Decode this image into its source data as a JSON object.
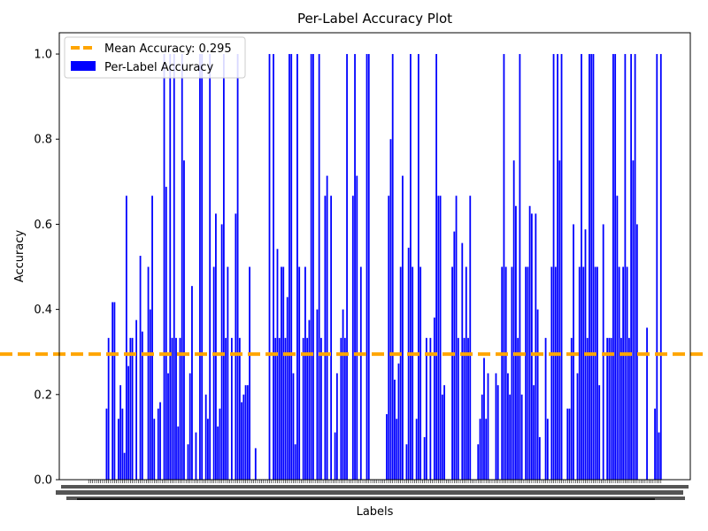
{
  "chart_data": {
    "type": "bar",
    "title": "Per-Label Accuracy Plot",
    "xlabel": "Labels",
    "ylabel": "Accuracy",
    "ylim": [
      0,
      1.05
    ],
    "yticks": [
      "0.0",
      "0.2",
      "0.4",
      "0.6",
      "0.8",
      "1.0"
    ],
    "mean_line": {
      "value": 0.295,
      "label": "Mean Accuracy: 0.295",
      "color": "#ffa500",
      "style": "dashed"
    },
    "series": [
      {
        "name": "Per-Label Accuracy",
        "color": "#0000ff",
        "values": [
          0,
          0,
          0,
          0,
          0,
          0,
          0,
          0,
          0,
          0.167,
          0.333,
          0,
          0.417,
          0.417,
          0,
          0.143,
          0.222,
          0.167,
          0.063,
          0.667,
          0.267,
          0.333,
          0.333,
          0,
          0.375,
          0,
          0.526,
          0.348,
          0,
          0,
          0.5,
          0.4,
          0.667,
          0.143,
          0,
          0.167,
          0.182,
          0,
          1.0,
          0.688,
          0.25,
          1.0,
          0.333,
          1.0,
          0.333,
          0.125,
          0.333,
          1.0,
          0.75,
          0,
          0.083,
          0.25,
          0.455,
          0,
          0.111,
          0,
          1.0,
          1.0,
          0,
          0.2,
          0.143,
          1.0,
          0,
          0.5,
          0.625,
          0.125,
          0.167,
          0.6,
          1.0,
          0.333,
          0.5,
          0,
          0.333,
          0,
          0.625,
          1.0,
          0.333,
          0.182,
          0.2,
          0.222,
          0.222,
          0.5,
          0,
          0,
          0.074,
          0,
          0,
          0,
          0,
          0,
          0,
          1.0,
          0,
          1.0,
          0.333,
          0.542,
          0.333,
          0.5,
          0.5,
          0.333,
          0.429,
          1.0,
          1.0,
          0.25,
          0.083,
          1.0,
          0.5,
          0,
          0.333,
          0.5,
          0.333,
          0.375,
          1.0,
          1.0,
          0,
          0.4,
          1.0,
          0.333,
          0,
          0.667,
          0.714,
          0,
          0.667,
          0,
          0.111,
          0.25,
          0,
          0.333,
          0.4,
          0.333,
          1.0,
          0,
          0,
          0.667,
          1.0,
          0.714,
          0,
          0.5,
          0,
          0,
          1.0,
          1.0,
          0,
          0,
          0,
          0,
          0,
          0,
          0,
          0,
          0.154,
          0.667,
          0.8,
          1.0,
          0.235,
          0.143,
          0.273,
          0.5,
          0.714,
          0,
          0.083,
          0.545,
          1.0,
          0.5,
          0,
          0.143,
          1.0,
          0.5,
          0,
          0.1,
          0.333,
          0,
          0.333,
          0,
          0.381,
          1.0,
          0.667,
          0.667,
          0.2,
          0.222,
          0,
          0,
          0,
          0.5,
          0.583,
          0.667,
          0.333,
          0,
          0.556,
          0.333,
          0.5,
          0.333,
          0.667,
          0,
          0,
          0,
          0.083,
          0.143,
          0.2,
          0.286,
          0.143,
          0.25,
          0,
          0,
          0,
          0.25,
          0.222,
          0,
          0.5,
          1.0,
          0.5,
          0.25,
          0.2,
          0.5,
          0.75,
          0.643,
          0.333,
          1.0,
          0.2,
          0,
          0.5,
          0.5,
          0.643,
          0.625,
          0.222,
          0.625,
          0.4,
          0.1,
          0,
          0,
          0.333,
          0.143,
          0,
          0.5,
          1.0,
          0.5,
          1.0,
          0.75,
          1.0,
          0,
          0,
          0.167,
          0.167,
          0.333,
          0.6,
          0,
          0.25,
          0.5,
          1.0,
          0.5,
          0.588,
          0.333,
          1.0,
          1.0,
          1.0,
          0.5,
          0.5,
          0.222,
          0,
          0.6,
          0,
          0.333,
          0.333,
          0.333,
          1.0,
          1.0,
          0.667,
          0.5,
          0.333,
          0.5,
          1.0,
          0.5,
          0.333,
          1.0,
          0.75,
          1.0,
          0.6,
          0,
          0,
          0,
          0,
          0.357,
          0,
          0,
          0,
          0.167,
          1.0,
          0.111,
          1.0
        ]
      }
    ]
  }
}
